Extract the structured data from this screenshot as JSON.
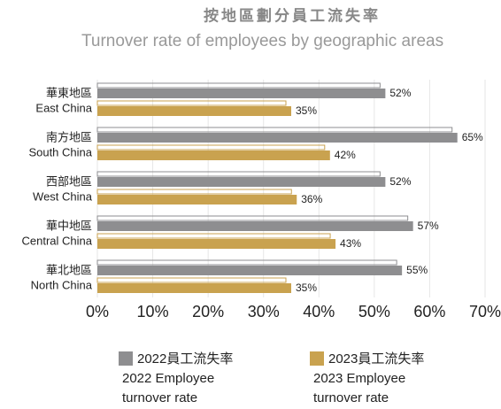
{
  "chart_data": {
    "type": "bar",
    "orientation": "horizontal",
    "title": "按地區劃分員工流失率",
    "subtitle": "Turnover rate of employees by geographic areas",
    "categories": [
      [
        "華東地區",
        "East China"
      ],
      [
        "南方地區",
        "South China"
      ],
      [
        "西部地區",
        "West China"
      ],
      [
        "華中地區",
        "Central China"
      ],
      [
        "華北地區",
        "North China"
      ]
    ],
    "series": [
      {
        "name": [
          "2022員工流失率",
          "2022 Employee",
          "turnover rate"
        ],
        "color": "#8e8e90",
        "values": [
          52,
          65,
          52,
          57,
          55
        ],
        "value_labels": [
          "52%",
          "65%",
          "52%",
          "57%",
          "55%"
        ]
      },
      {
        "name": [
          "2023員工流失率",
          "2023 Employee",
          "turnover rate"
        ],
        "color": "#c9a24f",
        "values": [
          35,
          42,
          36,
          43,
          35
        ],
        "value_labels": [
          "35%",
          "42%",
          "36%",
          "43%",
          "35%"
        ]
      }
    ],
    "xlim": [
      0,
      70
    ],
    "xticks": [
      {
        "value": 0,
        "label": "0%"
      },
      {
        "value": 10,
        "label": "10%"
      },
      {
        "value": 20,
        "label": "20%"
      },
      {
        "value": 30,
        "label": "30%"
      },
      {
        "value": 40,
        "label": "40%"
      },
      {
        "value": 50,
        "label": "50%"
      },
      {
        "value": 60,
        "label": "60%"
      },
      {
        "value": 70,
        "label": "70%"
      }
    ],
    "grid": true
  }
}
